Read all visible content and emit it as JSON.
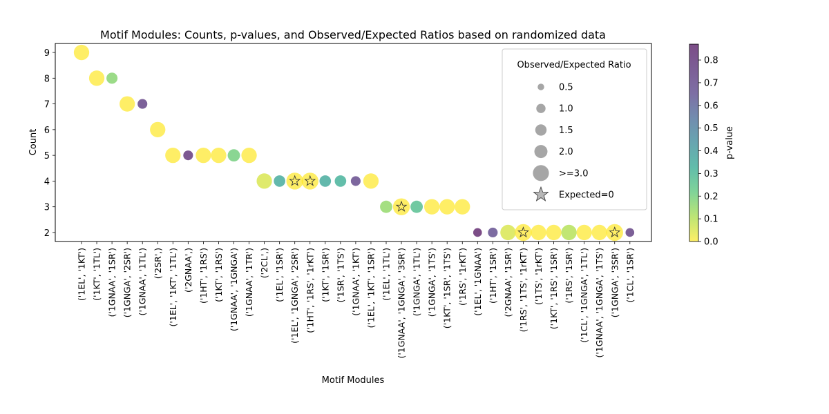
{
  "chart_data": {
    "type": "scatter",
    "title": "Motif Modules: Counts, p-values, and Observed/Expected Ratios based on randomized data",
    "xlabel": "Motif Modules",
    "ylabel": "Count",
    "ylim": [
      1.65,
      9.35
    ],
    "yticks": [
      2,
      3,
      4,
      5,
      6,
      7,
      8,
      9
    ],
    "grid": false,
    "categories": [
      "('1EL', '1KT')",
      "('1KT', '1TL')",
      "('1GNAA', '1SR')",
      "('1GNGA', '2SR')",
      "('1GNAA', '1TL')",
      "('2SR',)",
      "('1EL', '1KT', '1TL')",
      "('2GNAA',)",
      "('1HT', '1RS')",
      "('1KT', '1RS')",
      "('1GNAA', '1GNGA')",
      "('1GNAA', '1TR')",
      "('2CL',)",
      "('1EL', '1SR')",
      "('1EL', '1GNGA', '2SR')",
      "('1HT', '1RS', '1rKT')",
      "('1KT', '1SR')",
      "('1SR', '1TS')",
      "('1GNAA', '1KT')",
      "('1EL', '1KT', '1SR')",
      "('1EL', '1TL')",
      "('1GNAA', '1GNGA', '3SR')",
      "('1GNGA', '1TL')",
      "('1GNGA', '1TS')",
      "('1KT', '1SR', '1TS')",
      "('1RS', '1rKT')",
      "('1EL', '1GNAA')",
      "('1HT', '1SR')",
      "('2GNAA', '1SR')",
      "('1RS', '1TS', '1rKT')",
      "('1TS', '1rKT')",
      "('1KT', '1RS', '1SR')",
      "('1RS', '1SR')",
      "('1CL', '1GNGA', '1TL')",
      "('1GNAA', '1GNGA', '1TS')",
      "('1GNGA', '3SR')",
      "('1CL', '1SR')"
    ],
    "counts": [
      9,
      8,
      8,
      7,
      7,
      6,
      5,
      5,
      5,
      5,
      5,
      5,
      4,
      4,
      4,
      4,
      4,
      4,
      4,
      4,
      3,
      3,
      3,
      3,
      3,
      3,
      2,
      2,
      2,
      2,
      2,
      2,
      2,
      2,
      2,
      2,
      2
    ],
    "p_values": [
      0.0,
      0.0,
      0.17,
      0.0,
      0.74,
      0.0,
      0.0,
      0.8,
      0.0,
      0.0,
      0.2,
      0.0,
      0.05,
      0.35,
      0.0,
      0.0,
      0.35,
      0.32,
      0.7,
      0.0,
      0.15,
      0.0,
      0.27,
      0.0,
      0.0,
      0.0,
      0.87,
      0.67,
      0.05,
      0.0,
      0.0,
      0.0,
      0.1,
      0.0,
      0.0,
      0.0,
      0.75
    ],
    "obs_exp_ratio": [
      2.5,
      2.5,
      1.3,
      2.5,
      1.0,
      2.5,
      2.5,
      1.0,
      2.5,
      2.5,
      1.6,
      2.5,
      2.5,
      1.4,
      null,
      null,
      1.4,
      1.4,
      1.0,
      2.5,
      1.6,
      null,
      1.6,
      2.5,
      2.5,
      2.5,
      0.8,
      1.0,
      2.5,
      null,
      2.5,
      2.5,
      2.5,
      2.5,
      2.5,
      null,
      0.8
    ],
    "colorbar": {
      "label": "p-value",
      "min": 0.0,
      "max": 0.87,
      "ticks": [
        "0.0",
        "0.1",
        "0.2",
        "0.3",
        "0.4",
        "0.5",
        "0.6",
        "0.7",
        "0.8"
      ],
      "colormap": "viridis"
    },
    "legend": {
      "title": "Observed/Expected Ratio",
      "placement": "upper right",
      "entries": [
        {
          "label": "0.5",
          "ratio": 0.5
        },
        {
          "label": "1.0",
          "ratio": 1.0
        },
        {
          "label": "1.5",
          "ratio": 1.5
        },
        {
          "label": "2.0",
          "ratio": 2.0
        },
        {
          "label": ">=3.0",
          "ratio": 3.0
        },
        {
          "label": "Expected=0",
          "marker": "star"
        }
      ]
    }
  }
}
